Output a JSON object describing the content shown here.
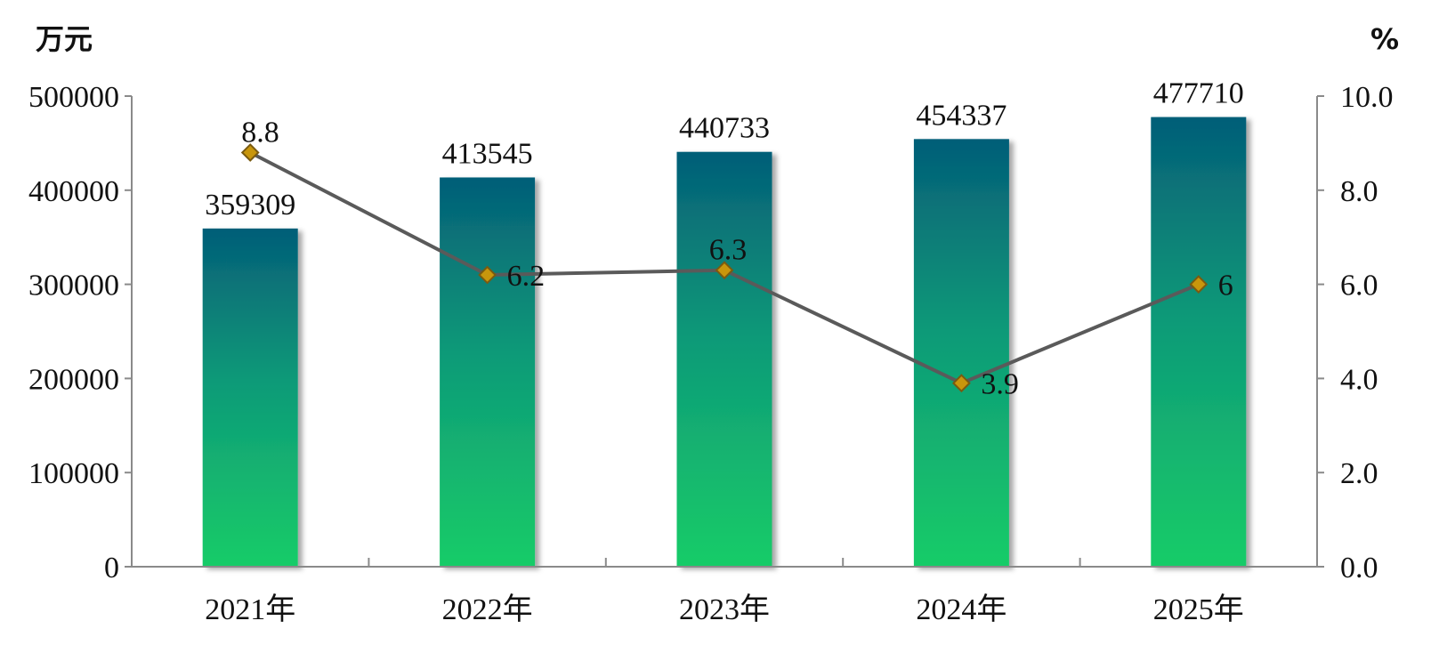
{
  "chart_data": {
    "type": "bar",
    "categories": [
      "2021年",
      "2022年",
      "2023年",
      "2024年",
      "2025年"
    ],
    "series": [
      {
        "type": "bar",
        "axis": "left",
        "values": [
          359309,
          413545,
          440733,
          454337,
          477710
        ]
      },
      {
        "type": "line",
        "axis": "right",
        "values": [
          8.8,
          6.2,
          6.3,
          3.9,
          6
        ],
        "labels": [
          "8.8",
          "6.2",
          "6.3",
          "3.9",
          "6"
        ]
      }
    ],
    "y_left": {
      "unit": "万元",
      "ylim": [
        0,
        500000
      ],
      "ticks": [
        "0",
        "100000",
        "200000",
        "300000",
        "400000",
        "500000"
      ]
    },
    "y_right": {
      "unit": "%",
      "ylim": [
        0,
        10
      ],
      "ticks": [
        "0.0",
        "2.0",
        "4.0",
        "6.0",
        "8.0",
        "10.0"
      ]
    },
    "grid": false,
    "legend": "none",
    "colors": {
      "bar_top": "#045e78",
      "bar_mid": "#0e9a78",
      "bar_bottom": "#18cc68",
      "line": "#5a5a5a",
      "marker_fill": "#c8960c",
      "marker_stroke": "#7a5a10",
      "axis": "#8a8a8a"
    }
  }
}
